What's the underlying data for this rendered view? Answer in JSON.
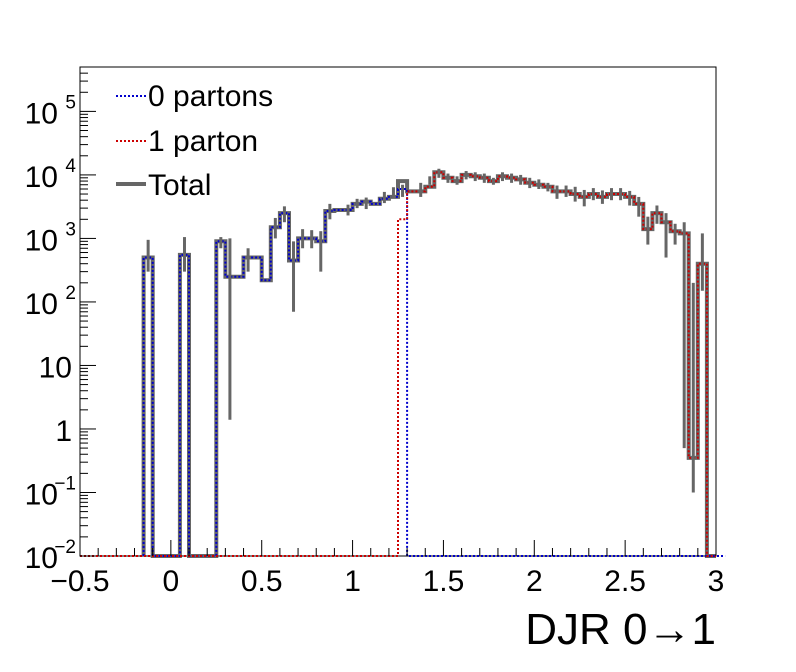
{
  "chart_data": {
    "type": "histogram-step",
    "xlabel": "DJR 0→1",
    "ylabel": "",
    "xlim": [
      -0.5,
      3.0
    ],
    "ylim": [
      0.01,
      500000
    ],
    "y_scale": "log",
    "grid": false,
    "legend_position": "top-left",
    "bin_width": 0.05,
    "x_ticks": [
      {
        "value": -0.5,
        "label": "−0.5"
      },
      {
        "value": 0,
        "label": "0"
      },
      {
        "value": 0.5,
        "label": "0.5"
      },
      {
        "value": 1,
        "label": "1"
      },
      {
        "value": 1.5,
        "label": "1.5"
      },
      {
        "value": 2,
        "label": "2"
      },
      {
        "value": 2.5,
        "label": "2.5"
      },
      {
        "value": 3,
        "label": "3"
      }
    ],
    "y_ticks": [
      {
        "value": 0.01,
        "base": "10",
        "exp": "−2"
      },
      {
        "value": 0.1,
        "base": "10",
        "exp": "−1"
      },
      {
        "value": 1,
        "base": "1",
        "exp": ""
      },
      {
        "value": 10,
        "base": "10",
        "exp": ""
      },
      {
        "value": 100,
        "base": "10",
        "exp": "2"
      },
      {
        "value": 1000,
        "base": "10",
        "exp": "3"
      },
      {
        "value": 10000,
        "base": "10",
        "exp": "4"
      },
      {
        "value": 100000,
        "base": "10",
        "exp": "5"
      }
    ],
    "series": [
      {
        "name": "0 partons",
        "color": "#0000cc",
        "style": "dotted",
        "bins": [
          [
            -0.15,
            0.01
          ],
          [
            -0.15,
            500
          ],
          [
            -0.1,
            0.01
          ],
          [
            0.05,
            550
          ],
          [
            0.1,
            0.01
          ],
          [
            0.25,
            900
          ],
          [
            0.3,
            250
          ],
          [
            0.35,
            250
          ],
          [
            0.4,
            500
          ],
          [
            0.45,
            500
          ],
          [
            0.5,
            220
          ],
          [
            0.55,
            1500
          ],
          [
            0.6,
            2500
          ],
          [
            0.65,
            450
          ],
          [
            0.7,
            1000
          ],
          [
            0.75,
            1000
          ],
          [
            0.8,
            900
          ],
          [
            0.85,
            2700
          ],
          [
            0.9,
            2800
          ],
          [
            0.95,
            2800
          ],
          [
            1.0,
            3500
          ],
          [
            1.05,
            3800
          ],
          [
            1.1,
            3500
          ],
          [
            1.15,
            4200
          ],
          [
            1.2,
            4500
          ],
          [
            1.25,
            6000
          ],
          [
            1.3,
            0.01
          ]
        ],
        "errors": [
          [
            -0.125,
            300,
            950
          ],
          [
            0.075,
            300,
            1050
          ],
          [
            0.275,
            700,
            1050
          ],
          [
            0.325,
            1.4,
            1000
          ],
          [
            0.425,
            300,
            700
          ],
          [
            0.575,
            1000,
            2100
          ],
          [
            0.625,
            1800,
            3200
          ],
          [
            0.675,
            70,
            900
          ],
          [
            0.725,
            700,
            1400
          ],
          [
            0.775,
            700,
            1350
          ],
          [
            0.825,
            300,
            1300
          ],
          [
            0.875,
            2000,
            3500
          ],
          [
            0.975,
            2300,
            3400
          ],
          [
            1.025,
            3000,
            4200
          ],
          [
            1.075,
            2900,
            4400
          ],
          [
            1.175,
            3600,
            5400
          ],
          [
            1.225,
            4300,
            6400
          ],
          [
            1.275,
            4500,
            7000
          ]
        ]
      },
      {
        "name": "1 parton",
        "color": "#cc0000",
        "style": "dotted",
        "bins": [
          [
            -0.5,
            0.01
          ],
          [
            1.25,
            2000
          ],
          [
            1.3,
            5500
          ],
          [
            1.35,
            5500
          ],
          [
            1.4,
            6500
          ],
          [
            1.45,
            11000
          ],
          [
            1.5,
            9000
          ],
          [
            1.55,
            8000
          ],
          [
            1.6,
            10000
          ],
          [
            1.65,
            9500
          ],
          [
            1.7,
            9000
          ],
          [
            1.75,
            8000
          ],
          [
            1.8,
            9500
          ],
          [
            1.85,
            9000
          ],
          [
            1.9,
            8500
          ],
          [
            1.95,
            7500
          ],
          [
            2.0,
            7000
          ],
          [
            2.05,
            6500
          ],
          [
            2.1,
            5500
          ],
          [
            2.15,
            5500
          ],
          [
            2.2,
            5000
          ],
          [
            2.25,
            4500
          ],
          [
            2.3,
            5000
          ],
          [
            2.35,
            4500
          ],
          [
            2.4,
            5000
          ],
          [
            2.45,
            5000
          ],
          [
            2.5,
            4500
          ],
          [
            2.55,
            3500
          ],
          [
            2.6,
            1400
          ],
          [
            2.65,
            2500
          ],
          [
            2.7,
            1800
          ],
          [
            2.75,
            1300
          ],
          [
            2.8,
            1200
          ],
          [
            2.85,
            0.35
          ],
          [
            2.9,
            400
          ],
          [
            2.95,
            0.01
          ]
        ],
        "errors": [
          [
            1.375,
            4500,
            7500
          ],
          [
            1.425,
            7000,
            9500
          ],
          [
            1.475,
            9000,
            12500
          ],
          [
            1.525,
            7500,
            10500
          ],
          [
            1.575,
            7000,
            9500
          ],
          [
            1.625,
            8500,
            11500
          ],
          [
            1.675,
            8000,
            11000
          ],
          [
            1.725,
            7500,
            10500
          ],
          [
            1.775,
            7000,
            9000
          ],
          [
            1.825,
            8000,
            11000
          ],
          [
            1.875,
            7500,
            10500
          ],
          [
            1.925,
            7000,
            10000
          ],
          [
            1.975,
            6200,
            9000
          ],
          [
            2.025,
            6000,
            8500
          ],
          [
            2.075,
            5500,
            7500
          ],
          [
            2.125,
            4200,
            6800
          ],
          [
            2.175,
            4500,
            6800
          ],
          [
            2.225,
            3800,
            6500
          ],
          [
            2.275,
            3200,
            5800
          ],
          [
            2.325,
            4000,
            6200
          ],
          [
            2.375,
            3500,
            5700
          ],
          [
            2.425,
            4000,
            6200
          ],
          [
            2.475,
            4000,
            6200
          ],
          [
            2.525,
            3300,
            5600
          ],
          [
            2.575,
            2200,
            4500
          ],
          [
            2.625,
            800,
            2200
          ],
          [
            2.675,
            1700,
            3300
          ],
          [
            2.725,
            500,
            2500
          ],
          [
            2.775,
            800,
            1700
          ],
          [
            2.825,
            0.5,
            1800
          ],
          [
            2.875,
            0.1,
            200
          ],
          [
            2.925,
            150,
            1200
          ]
        ]
      },
      {
        "name": "Total",
        "color": "#666666",
        "style": "solid",
        "bins": []
      }
    ]
  }
}
